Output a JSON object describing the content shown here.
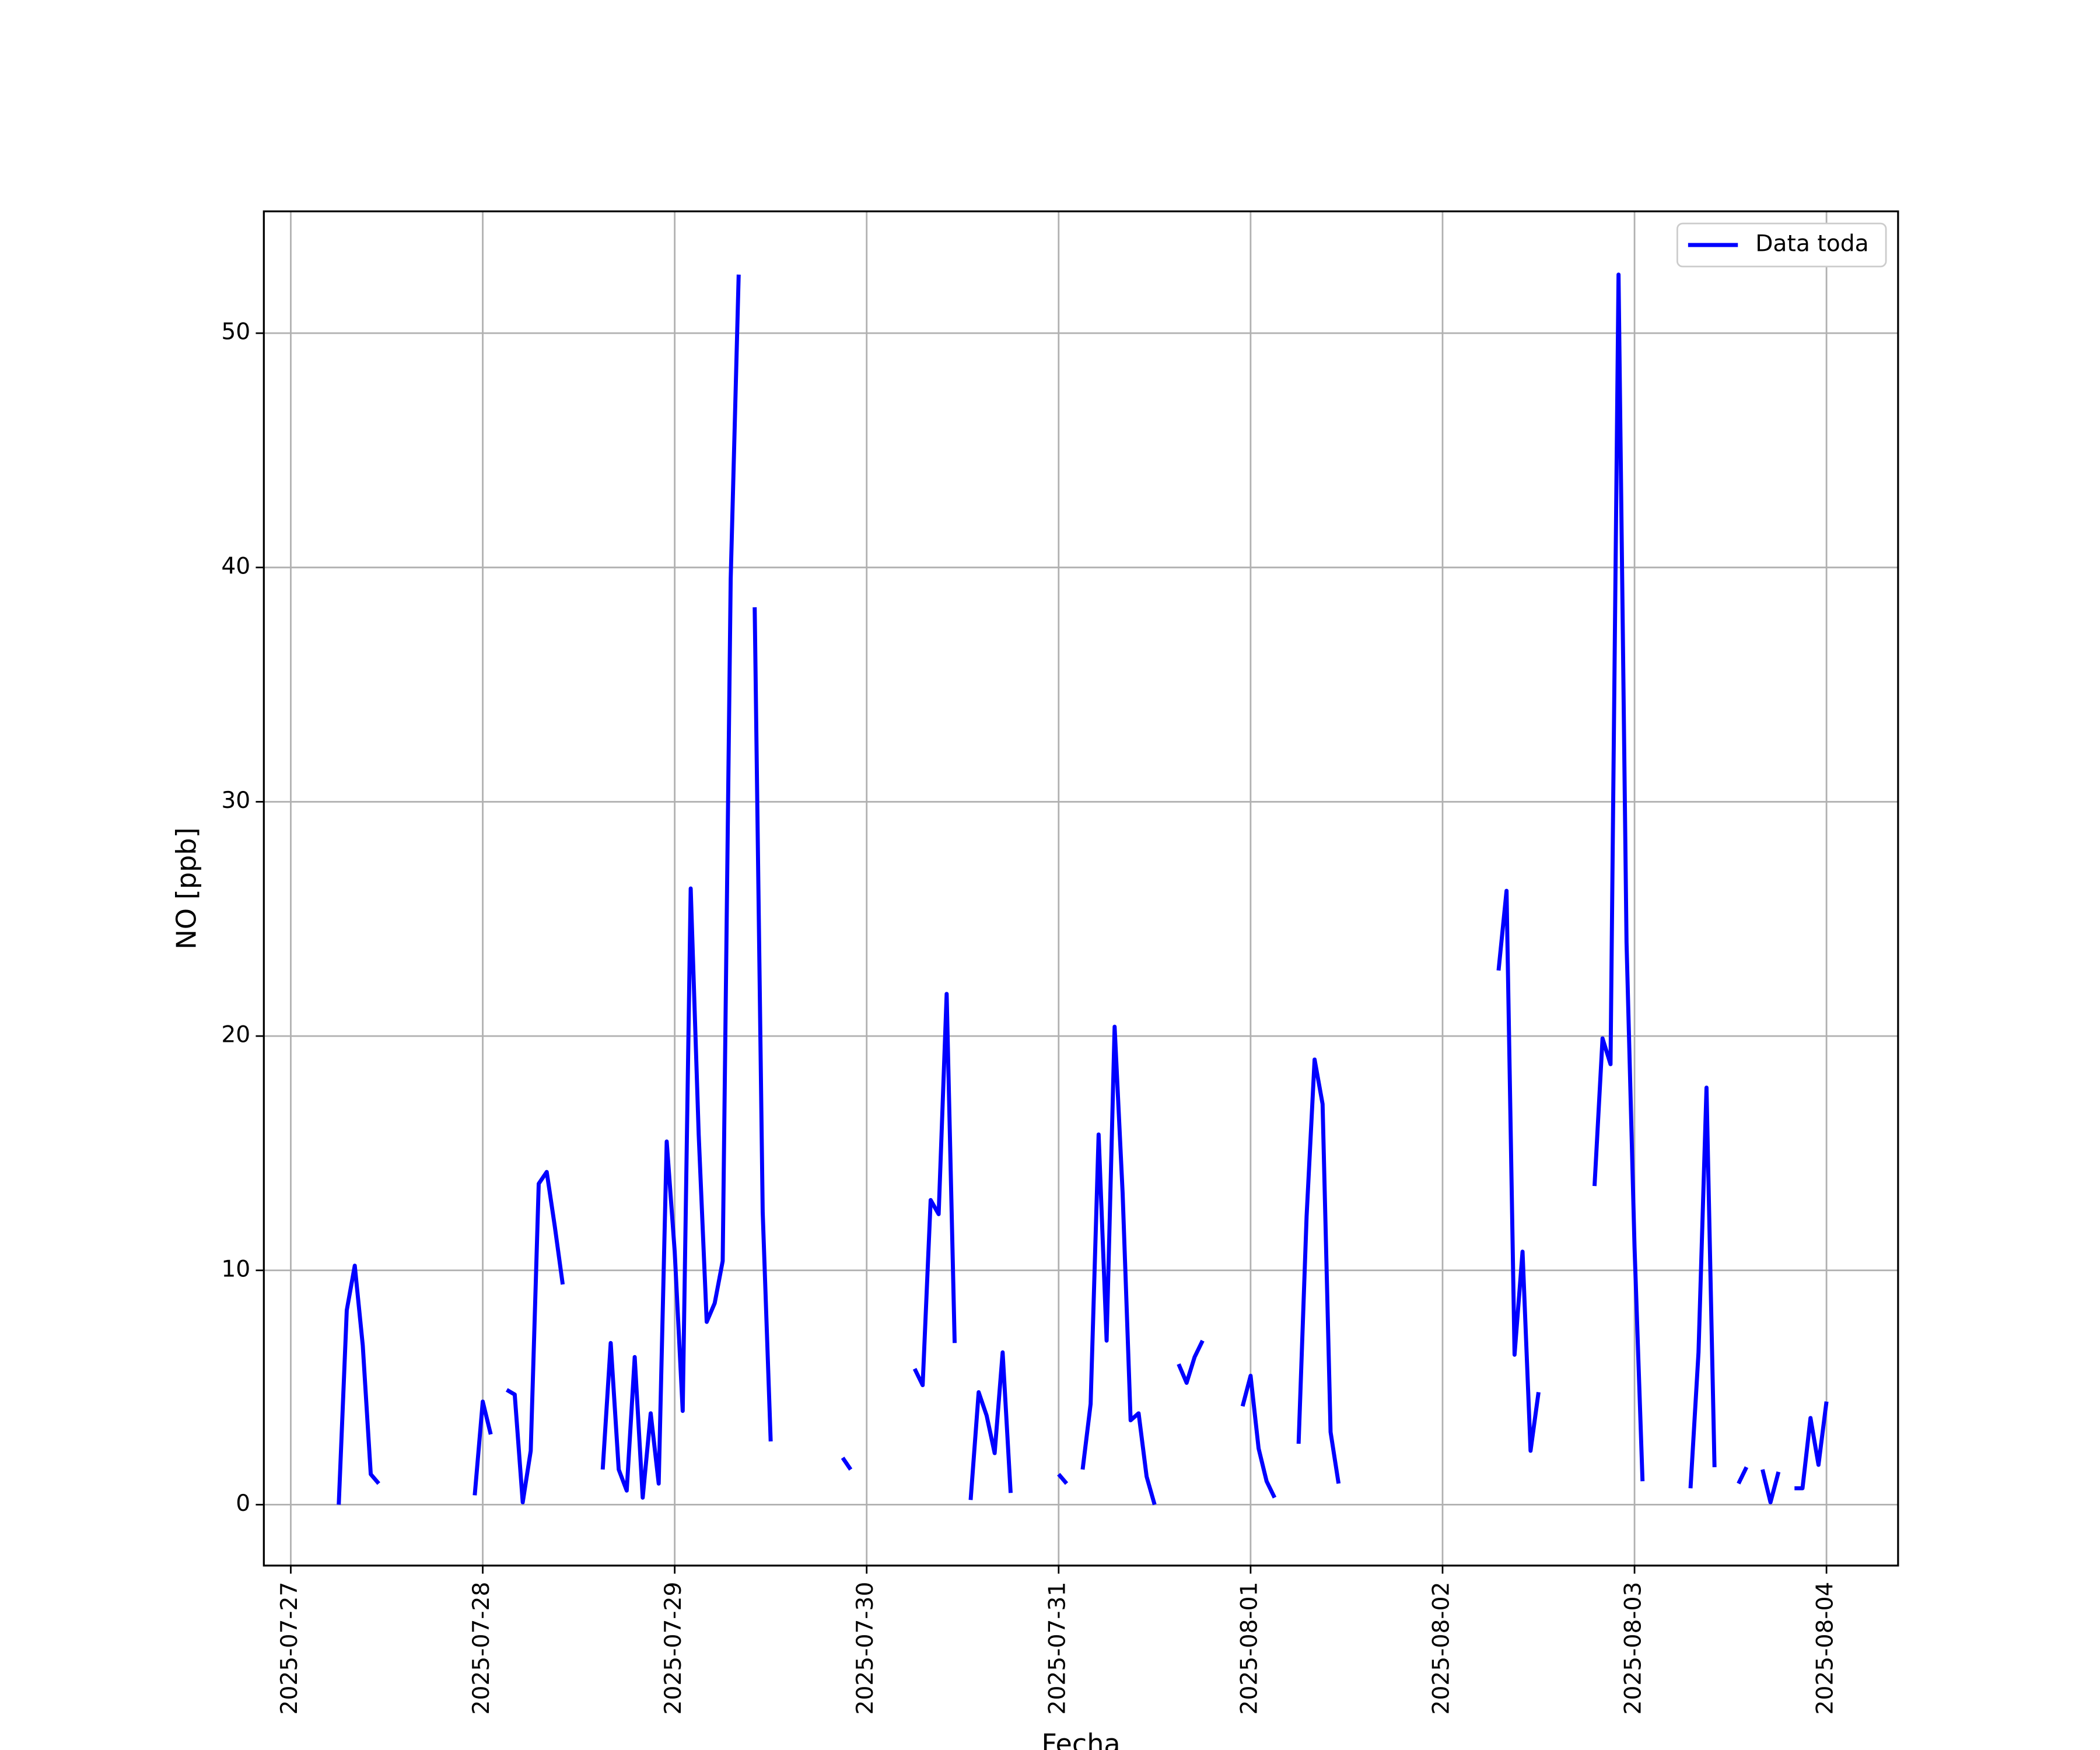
{
  "chart_data": {
    "type": "line",
    "xlabel": "Fecha",
    "ylabel": "NO [ppb]",
    "x": [
      "2025-07-27 06:00",
      "2025-07-27 07:00",
      "2025-07-27 08:00",
      "2025-07-27 09:00",
      "2025-07-27 10:00",
      "2025-07-27 11:00",
      "2025-07-27 12:00",
      "2025-07-27 23:00",
      "2025-07-28 00:00",
      "2025-07-28 01:00",
      "2025-07-28 02:00",
      "2025-07-28 03:00",
      "2025-07-28 04:00",
      "2025-07-28 05:00",
      "2025-07-28 06:00",
      "2025-07-28 07:00",
      "2025-07-28 08:00",
      "2025-07-28 09:00",
      "2025-07-28 10:00",
      "2025-07-28 11:00",
      "2025-07-28 15:00",
      "2025-07-28 16:00",
      "2025-07-28 17:00",
      "2025-07-28 18:00",
      "2025-07-28 19:00",
      "2025-07-28 20:00",
      "2025-07-28 21:00",
      "2025-07-28 22:00",
      "2025-07-28 23:00",
      "2025-07-29 00:00",
      "2025-07-29 01:00",
      "2025-07-29 02:00",
      "2025-07-29 03:00",
      "2025-07-29 04:00",
      "2025-07-29 05:00",
      "2025-07-29 06:00",
      "2025-07-29 07:00",
      "2025-07-29 08:00",
      "2025-07-29 09:00",
      "2025-07-29 10:00",
      "2025-07-29 11:00",
      "2025-07-29 12:00",
      "2025-07-29 13:00",
      "2025-07-29 21:00",
      "2025-07-29 22:00",
      "2025-07-29 23:00",
      "2025-07-30 06:00",
      "2025-07-30 07:00",
      "2025-07-30 08:00",
      "2025-07-30 09:00",
      "2025-07-30 10:00",
      "2025-07-30 11:00",
      "2025-07-30 12:00",
      "2025-07-30 13:00",
      "2025-07-30 14:00",
      "2025-07-30 15:00",
      "2025-07-30 16:00",
      "2025-07-30 17:00",
      "2025-07-30 18:00",
      "2025-07-30 19:00",
      "2025-07-31 00:00",
      "2025-07-31 01:00",
      "2025-07-31 02:00",
      "2025-07-31 03:00",
      "2025-07-31 04:00",
      "2025-07-31 05:00",
      "2025-07-31 06:00",
      "2025-07-31 07:00",
      "2025-07-31 08:00",
      "2025-07-31 09:00",
      "2025-07-31 10:00",
      "2025-07-31 11:00",
      "2025-07-31 12:00",
      "2025-07-31 13:00",
      "2025-07-31 15:00",
      "2025-07-31 16:00",
      "2025-07-31 17:00",
      "2025-07-31 18:00",
      "2025-07-31 19:00",
      "2025-07-31 23:00",
      "2025-08-01 00:00",
      "2025-08-01 01:00",
      "2025-08-01 02:00",
      "2025-08-01 03:00",
      "2025-08-01 04:00",
      "2025-08-01 06:00",
      "2025-08-01 07:00",
      "2025-08-01 08:00",
      "2025-08-01 09:00",
      "2025-08-01 10:00",
      "2025-08-01 11:00",
      "2025-08-01 12:00",
      "2025-08-02 07:00",
      "2025-08-02 08:00",
      "2025-08-02 09:00",
      "2025-08-02 10:00",
      "2025-08-02 11:00",
      "2025-08-02 12:00",
      "2025-08-02 13:00",
      "2025-08-02 19:00",
      "2025-08-02 20:00",
      "2025-08-02 21:00",
      "2025-08-02 22:00",
      "2025-08-02 23:00",
      "2025-08-03 00:00",
      "2025-08-03 01:00",
      "2025-08-03 02:00",
      "2025-08-03 07:00",
      "2025-08-03 08:00",
      "2025-08-03 09:00",
      "2025-08-03 10:00",
      "2025-08-03 11:00",
      "2025-08-03 13:00",
      "2025-08-03 14:00",
      "2025-08-03 15:00",
      "2025-08-03 16:00",
      "2025-08-03 17:00",
      "2025-08-03 18:00",
      "2025-08-03 19:00",
      "2025-08-03 20:00",
      "2025-08-03 21:00",
      "2025-08-03 22:00",
      "2025-08-03 23:00",
      "2025-08-04 00:00"
    ],
    "series": [
      {
        "name": "Data toda",
        "color": "#0000ff",
        "values": [
          0,
          8.3,
          10.2,
          6.8,
          1.3,
          0.9,
          null,
          0.4,
          4.4,
          3.0,
          null,
          4.9,
          4.7,
          0.1,
          2.3,
          13.7,
          14.2,
          11.9,
          9.4,
          null,
          1.5,
          6.9,
          1.5,
          0.6,
          6.3,
          0.3,
          3.9,
          0.9,
          15.5,
          10.8,
          4.0,
          26.3,
          15.8,
          7.8,
          8.6,
          10.4,
          39.5,
          52.5,
          null,
          38.3,
          12.5,
          2.7,
          null,
          2.0,
          1.5,
          null,
          5.8,
          5.1,
          13.0,
          12.4,
          21.8,
          6.9,
          null,
          0.2,
          4.8,
          3.8,
          2.2,
          6.5,
          0.5,
          null,
          1.3,
          0.9,
          null,
          1.5,
          4.3,
          15.8,
          7.0,
          20.4,
          13.3,
          3.6,
          3.9,
          1.2,
          0,
          null,
          6.0,
          5.2,
          6.3,
          7.0,
          null,
          4.2,
          5.5,
          2.4,
          1.0,
          0.3,
          null,
          2.6,
          12.3,
          19.0,
          17.1,
          3.1,
          0.9,
          null,
          22.8,
          26.2,
          6.4,
          10.8,
          2.3,
          4.8,
          null,
          13.6,
          19.9,
          18.8,
          52.5,
          24.0,
          11.0,
          1.0,
          null,
          0.7,
          6.5,
          17.8,
          1.6,
          null,
          0.9,
          1.6,
          null,
          1.5,
          0.1,
          1.4,
          null,
          0.7,
          0.7,
          3.7,
          1.7,
          4.4
        ]
      }
    ],
    "xlim": [
      "2025-07-26 20:38",
      "2025-08-04 08:57"
    ],
    "xticks": [
      "2025-07-27",
      "2025-07-28",
      "2025-07-29",
      "2025-07-30",
      "2025-07-31",
      "2025-08-01",
      "2025-08-02",
      "2025-08-03",
      "2025-08-04"
    ],
    "ylim": [
      -2.6,
      55.2
    ],
    "yticks": [
      0,
      10,
      20,
      30,
      40,
      50
    ],
    "grid": true,
    "legend": "upper right"
  }
}
